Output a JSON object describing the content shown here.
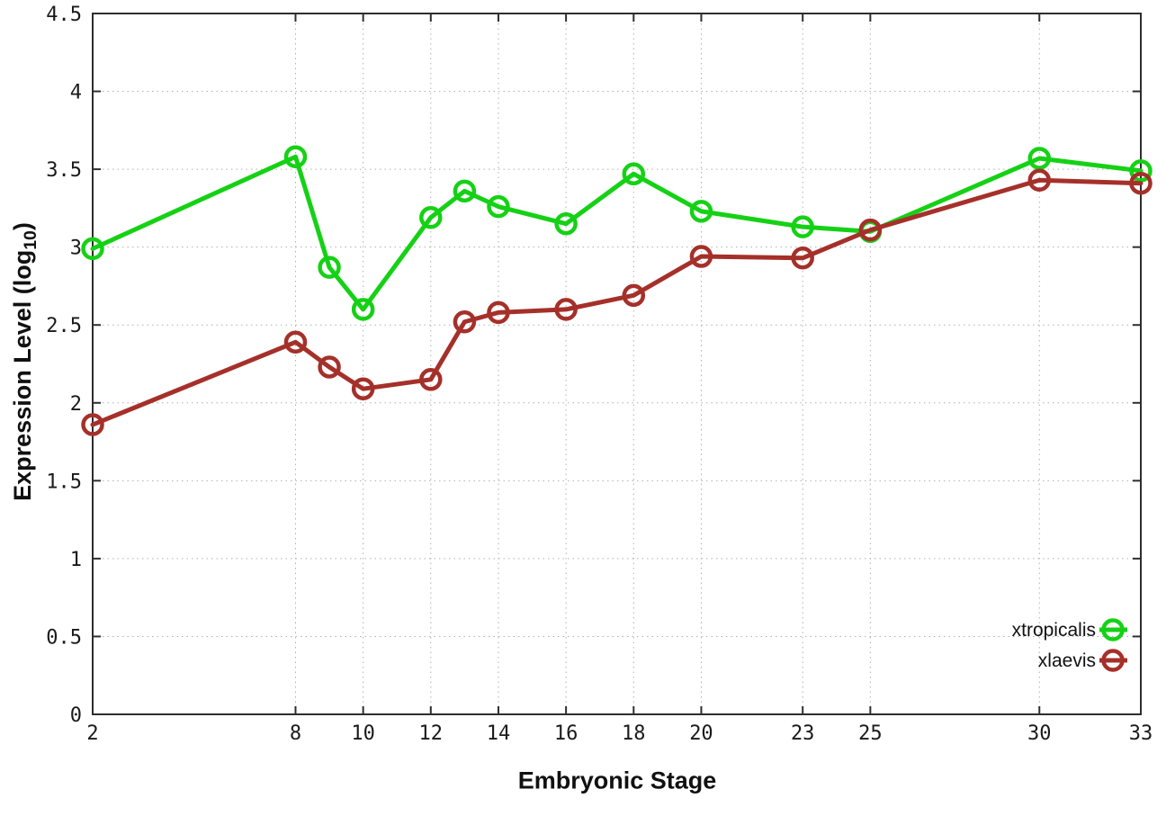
{
  "chart_data": {
    "type": "line",
    "title": "",
    "xlabel": "Embryonic Stage",
    "ylabel": "Expression Level (log10)",
    "ylabel_parts": {
      "main": "Expression Level (log",
      "sub": "10",
      "close": ")"
    },
    "x": [
      2,
      8,
      9,
      10,
      12,
      13,
      14,
      16,
      18,
      20,
      23,
      25,
      30,
      33
    ],
    "series": [
      {
        "name": "xtropicalis",
        "color": "#15d115",
        "values": [
          2.99,
          3.58,
          2.87,
          2.6,
          3.19,
          3.36,
          3.26,
          3.15,
          3.47,
          3.23,
          3.13,
          3.1,
          3.57,
          3.49
        ]
      },
      {
        "name": "xlaevis",
        "color": "#a5302a",
        "values": [
          1.86,
          2.39,
          2.23,
          2.09,
          2.15,
          2.52,
          2.58,
          2.6,
          2.69,
          2.94,
          2.93,
          3.11,
          3.43,
          3.41
        ]
      }
    ],
    "xlim": [
      2,
      33
    ],
    "ylim": [
      0,
      4.5
    ],
    "xticks": [
      2,
      8,
      10,
      12,
      14,
      16,
      18,
      20,
      23,
      25,
      30,
      33
    ],
    "ytick_labels": [
      "0",
      "0.5",
      "1",
      "1.5",
      "2",
      "2.5",
      "3",
      "3.5",
      "4",
      "4.5"
    ],
    "yticks": [
      0,
      0.5,
      1,
      1.5,
      2,
      2.5,
      3,
      3.5,
      4,
      4.5
    ],
    "grid": true,
    "legend_position": "bottom-right",
    "colors": {
      "border": "#2e2e2e",
      "grid": "#b0b0b0",
      "tick_text": "#1a1a1a",
      "background": "#ffffff"
    }
  }
}
